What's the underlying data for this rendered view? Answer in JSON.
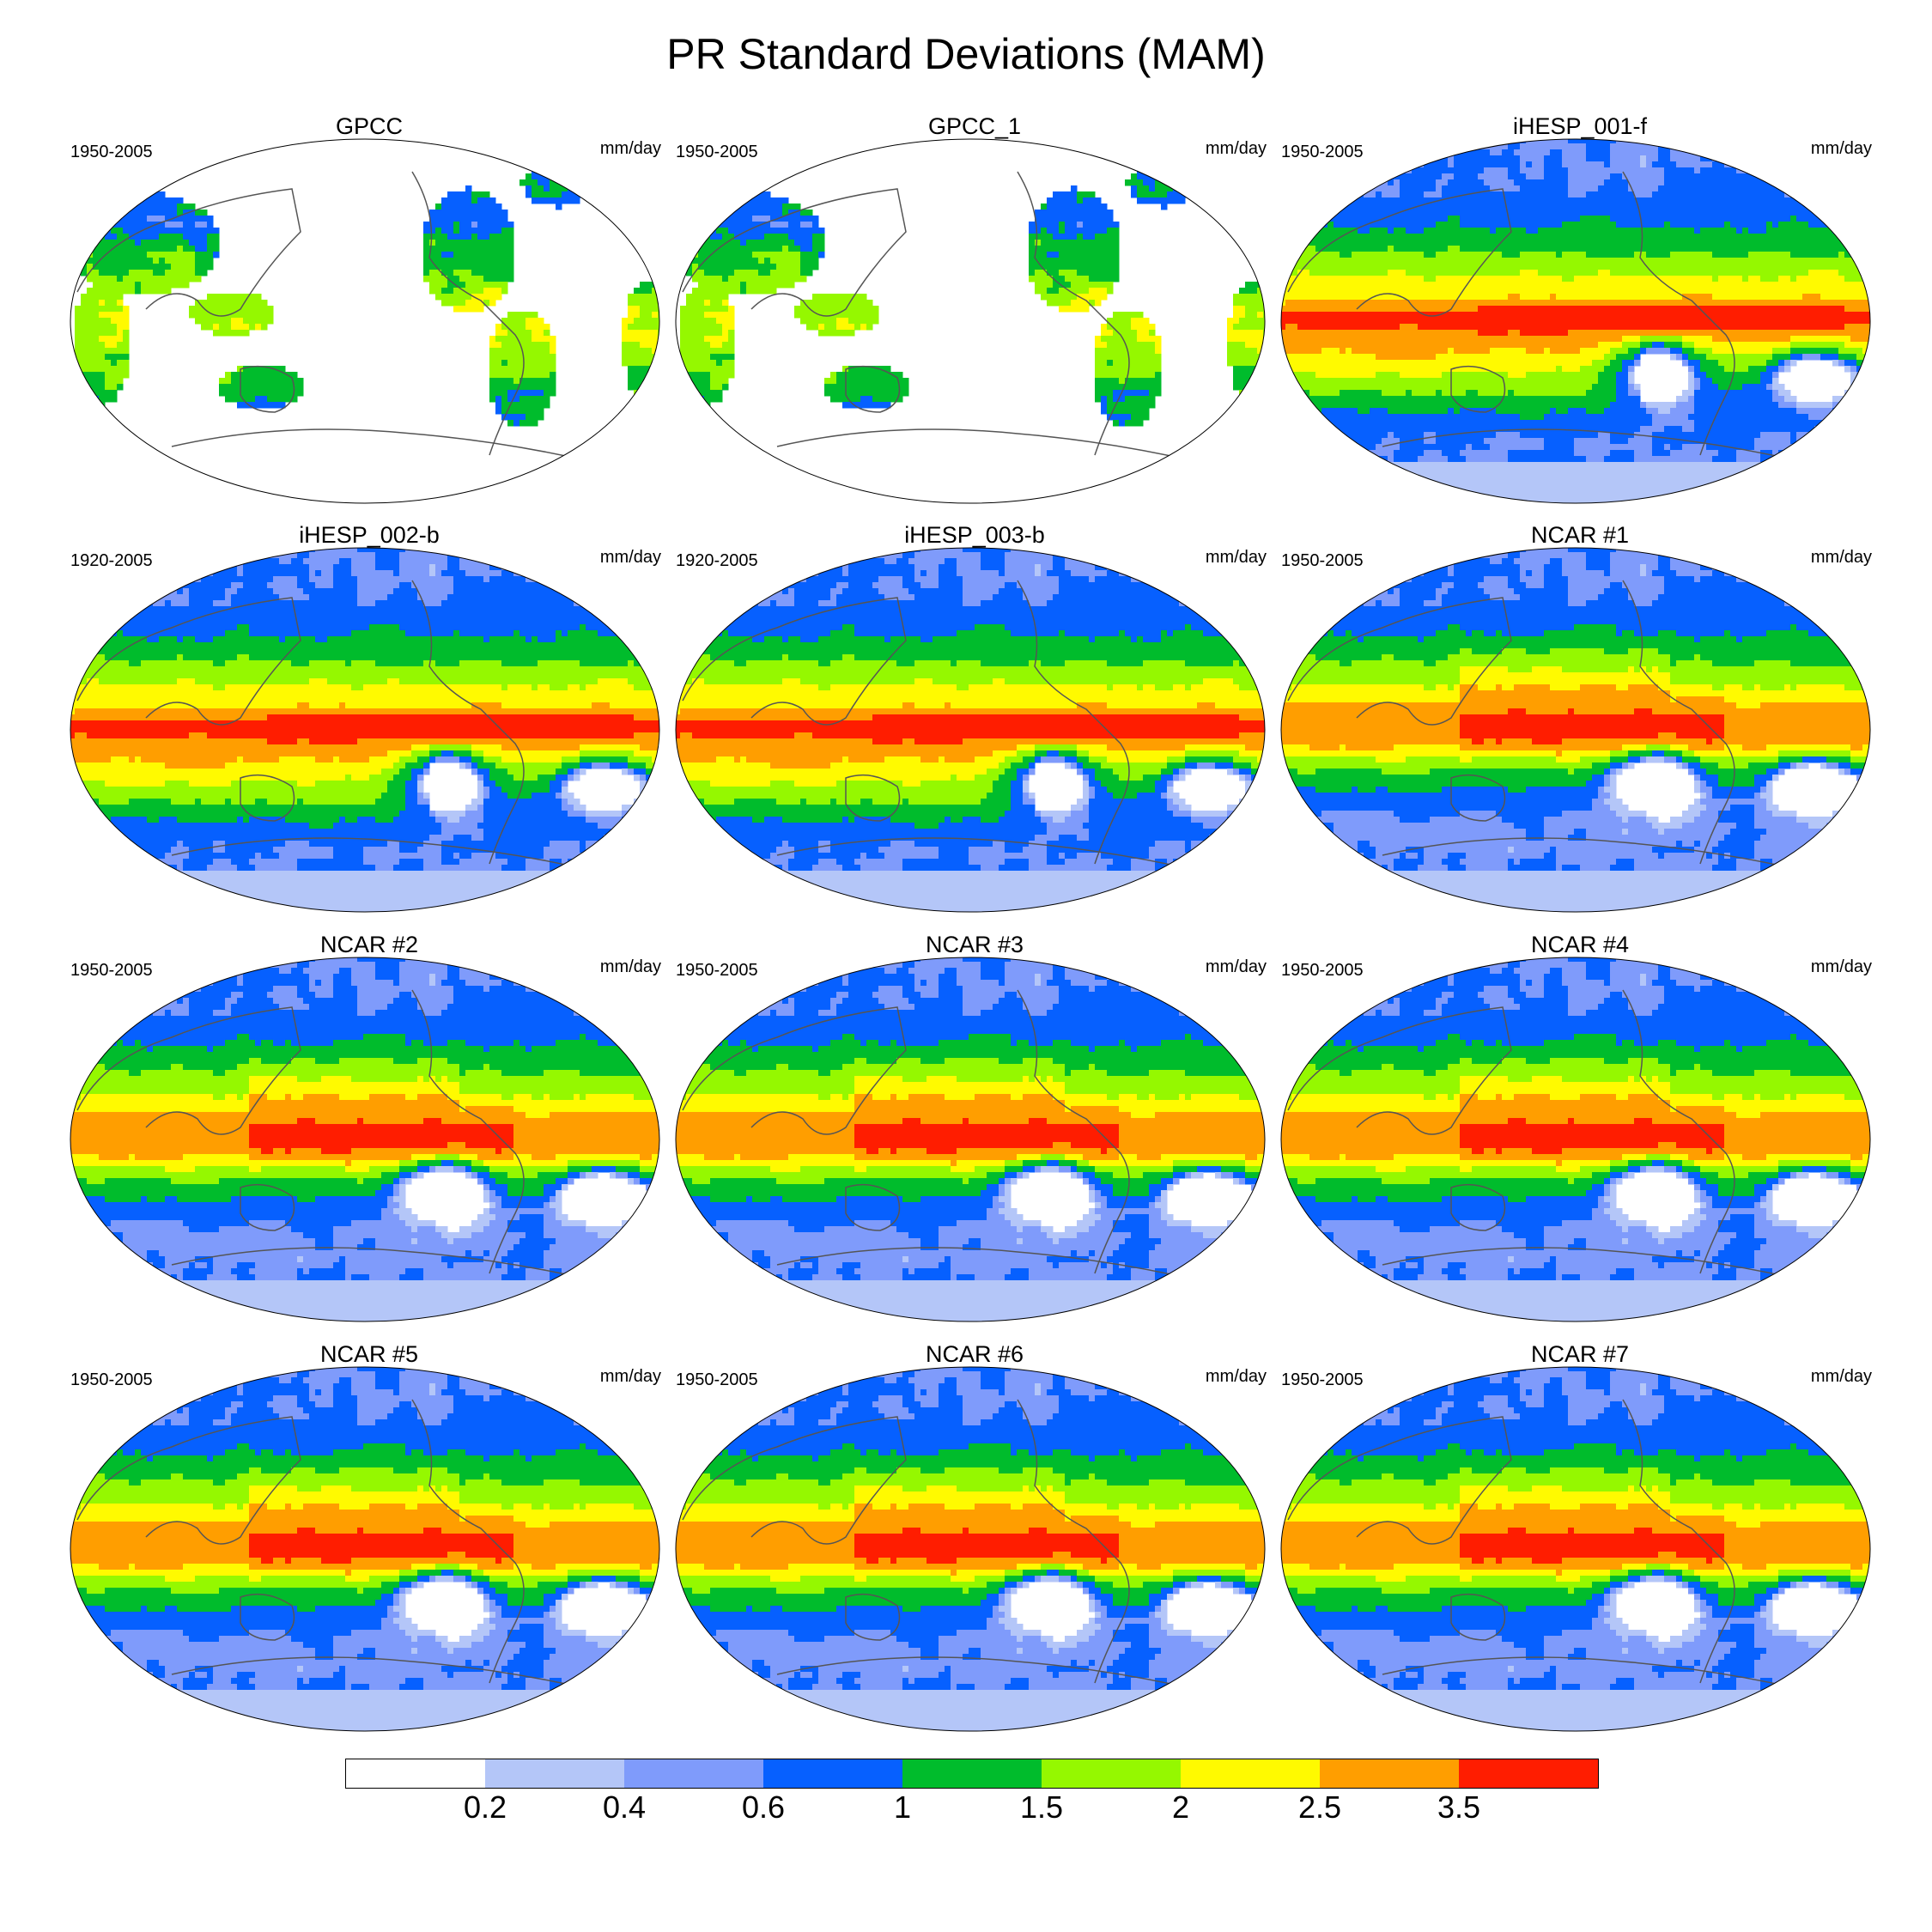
{
  "title": "PR Standard Deviations (MAM)",
  "units": "mm/day",
  "panels": [
    {
      "name": "GPCC",
      "years": "1950-2005",
      "field": "obs"
    },
    {
      "name": "GPCC_1",
      "years": "1950-2005",
      "field": "obs"
    },
    {
      "name": "iHESP_001-f",
      "years": "1950-2005",
      "field": "ihesp_strong"
    },
    {
      "name": "iHESP_002-b",
      "years": "1920-2005",
      "field": "ihesp_strong"
    },
    {
      "name": "iHESP_003-b",
      "years": "1920-2005",
      "field": "ihesp_strong"
    },
    {
      "name": "NCAR #1",
      "years": "1950-2005",
      "field": "ncar"
    },
    {
      "name": "NCAR #2",
      "years": "1950-2005",
      "field": "ncar"
    },
    {
      "name": "NCAR #3",
      "years": "1950-2005",
      "field": "ncar"
    },
    {
      "name": "NCAR #4",
      "years": "1950-2005",
      "field": "ncar"
    },
    {
      "name": "NCAR #5",
      "years": "1950-2005",
      "field": "ncar"
    },
    {
      "name": "NCAR #6",
      "years": "1950-2005",
      "field": "ncar"
    },
    {
      "name": "NCAR #7",
      "years": "1950-2005",
      "field": "ncar"
    }
  ],
  "colorbar": {
    "colors": [
      "#ffffff",
      "#b4c6f8",
      "#7f9bfb",
      "#0660ff",
      "#00bc2c",
      "#95f800",
      "#fffa00",
      "#ff9e00",
      "#ff1d00"
    ],
    "labels": [
      "0.2",
      "0.4",
      "0.6",
      "1",
      "1.5",
      "2",
      "2.5",
      "3.5"
    ]
  }
}
